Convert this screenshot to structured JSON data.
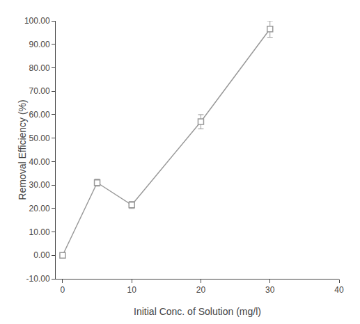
{
  "chart_data": {
    "type": "line",
    "x": [
      0,
      5,
      10,
      20,
      30
    ],
    "values": [
      0.0,
      31.0,
      21.5,
      57.0,
      96.5
    ],
    "yerr": [
      0.5,
      1.5,
      1.5,
      3.0,
      3.5
    ],
    "xlabel": "Initial Conc. of Solution (mg/l)",
    "ylabel": "Removal Efficiency (%)",
    "xlim": [
      -1,
      40
    ],
    "ylim": [
      -10,
      100
    ],
    "xticks": [
      0,
      10,
      20,
      30,
      40
    ],
    "yticks": [
      {
        "value": -10,
        "label": "-10.00"
      },
      {
        "value": 0,
        "label": "0.00"
      },
      {
        "value": 10,
        "label": "10.00"
      },
      {
        "value": 20,
        "label": "20.00"
      },
      {
        "value": 30,
        "label": "30.00"
      },
      {
        "value": 40,
        "label": "40.00"
      },
      {
        "value": 50,
        "label": "50.00"
      },
      {
        "value": 60,
        "label": "60.00"
      },
      {
        "value": 70,
        "label": "70.00"
      },
      {
        "value": 80,
        "label": "80.00"
      },
      {
        "value": 90,
        "label": "90.00"
      },
      {
        "value": 100,
        "label": "100.00"
      }
    ],
    "color": "#999999",
    "marker": "square",
    "grid": false
  }
}
